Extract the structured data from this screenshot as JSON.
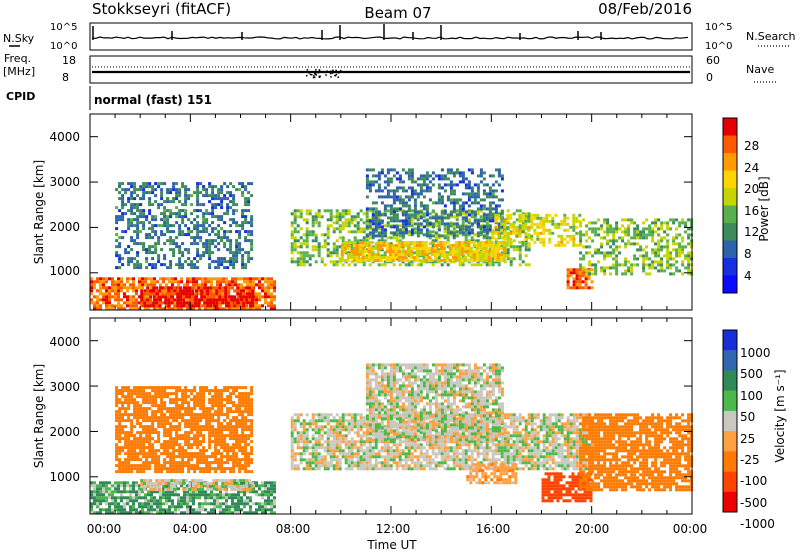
{
  "header": {
    "station": "Stokkseyri (fitACF)",
    "beam": "Beam 07",
    "date": "08/Feb/2016"
  },
  "nsky_panel": {
    "left_label": "N.Sky",
    "left_ticks": [
      "10^5",
      "10^0"
    ],
    "right_label": "N.Search",
    "right_ticks": [
      "10^5",
      "10^0"
    ]
  },
  "freq_panel": {
    "left_label_1": "Freq.",
    "left_label_2": "[MHz]",
    "left_ticks": [
      "18",
      "8"
    ],
    "right_label": "Nave",
    "right_ticks": [
      "60",
      "0"
    ]
  },
  "cpid_panel": {
    "label": "CPID",
    "mode": "normal (fast) 151"
  },
  "x_axis": {
    "label": "Time UT",
    "ticks": [
      "00:00",
      "04:00",
      "08:00",
      "12:00",
      "16:00",
      "20:00",
      "00:00"
    ]
  },
  "power_panel": {
    "ylabel": "Slant Range [km]",
    "yticks": [
      "4000",
      "3000",
      "2000",
      "1000"
    ],
    "colorbar_label": "Power [dB]",
    "colorbar_ticks": [
      "28",
      "24",
      "20",
      "16",
      "12",
      "8",
      "4"
    ],
    "colorbar_colors": [
      "#e60000",
      "#ff5a00",
      "#ff9a00",
      "#ffd400",
      "#c8d400",
      "#58b04c",
      "#3d8a5c",
      "#2d63a8",
      "#1630e0",
      "#0a0aff"
    ]
  },
  "velocity_panel": {
    "ylabel": "Slant Range [km]",
    "yticks": [
      "4000",
      "3000",
      "2000",
      "1000"
    ],
    "colorbar_label": "Velocity [m s⁻¹]",
    "colorbar_ticks": [
      "1000",
      "500",
      "100",
      "50",
      "25",
      "-25",
      "-100",
      "-500",
      "-1000"
    ],
    "colorbar_colors": [
      "#1a2ed8",
      "#2f68b0",
      "#2f8a58",
      "#4cb848",
      "#c8c8c0",
      "#ffa040",
      "#ff7a00",
      "#ff4400",
      "#ee0000"
    ]
  },
  "chart_data": [
    {
      "type": "heatmap",
      "title": "Power",
      "xlabel": "Time UT",
      "ylabel": "Slant Range [km]",
      "xlim_hours": [
        0,
        24
      ],
      "ylim_km": [
        180,
        4500
      ],
      "colorbar": {
        "label": "Power [dB]",
        "range": [
          0,
          30
        ],
        "ticks": [
          4,
          8,
          12,
          16,
          20,
          24,
          28
        ]
      },
      "echo_regions": [
        {
          "t0": 0.0,
          "t1": 7.3,
          "r0": 180,
          "r1": 900,
          "value": 26
        },
        {
          "t0": 2.0,
          "t1": 6.5,
          "r0": 300,
          "r1": 700,
          "value": 30
        },
        {
          "t0": 1.0,
          "t1": 6.5,
          "r0": 1100,
          "r1": 3000,
          "value": 8
        },
        {
          "t0": 8.0,
          "t1": 17.5,
          "r0": 1200,
          "r1": 2400,
          "value": 14
        },
        {
          "t0": 10.0,
          "t1": 16.5,
          "r0": 1250,
          "r1": 1700,
          "value": 20
        },
        {
          "t0": 11.0,
          "t1": 16.5,
          "r0": 1800,
          "r1": 3300,
          "value": 8
        },
        {
          "t0": 16.0,
          "t1": 19.5,
          "r0": 1600,
          "r1": 2300,
          "value": 18
        },
        {
          "t0": 19.0,
          "t1": 20.0,
          "r0": 700,
          "r1": 1100,
          "value": 26
        },
        {
          "t0": 19.5,
          "t1": 24.0,
          "r0": 1000,
          "r1": 2200,
          "value": 14
        }
      ]
    },
    {
      "type": "heatmap",
      "title": "Velocity",
      "xlabel": "Time UT",
      "ylabel": "Slant Range [km]",
      "xlim_hours": [
        0,
        24
      ],
      "ylim_km": [
        180,
        4500
      ],
      "colorbar": {
        "label": "Velocity [m s⁻¹]",
        "ticks": [
          1000,
          500,
          100,
          50,
          25,
          -25,
          -100,
          -500,
          -1000
        ]
      },
      "echo_regions": [
        {
          "t0": 0.0,
          "t1": 7.3,
          "r0": 180,
          "r1": 900,
          "value": 70
        },
        {
          "t0": 2.0,
          "t1": 6.5,
          "r0": 700,
          "r1": 950,
          "value": 0
        },
        {
          "t0": 1.0,
          "t1": 6.5,
          "r0": 1100,
          "r1": 3000,
          "value": -200
        },
        {
          "t0": 8.0,
          "t1": 20.0,
          "r0": 1200,
          "r1": 2400,
          "value": 0
        },
        {
          "t0": 11.0,
          "t1": 16.5,
          "r0": 1800,
          "r1": 3500,
          "value": 0
        },
        {
          "t0": 15.0,
          "t1": 17.0,
          "r0": 900,
          "r1": 1300,
          "value": -80
        },
        {
          "t0": 18.0,
          "t1": 20.0,
          "r0": 500,
          "r1": 1100,
          "value": -400
        },
        {
          "t0": 19.5,
          "t1": 24.0,
          "r0": 700,
          "r1": 2400,
          "value": -200
        }
      ]
    }
  ]
}
